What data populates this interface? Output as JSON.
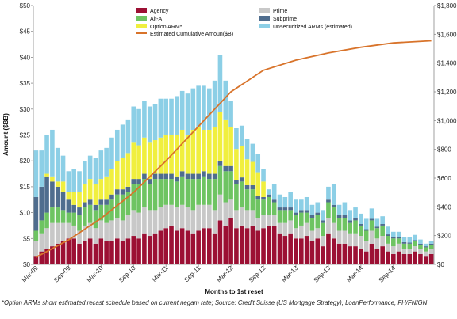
{
  "chart_data": {
    "type": "bar",
    "stacked": true,
    "xlabel": "Months to 1st reset",
    "ylabel": "Amount ($BB)",
    "ylim": [
      0,
      50
    ],
    "y2lim": [
      0,
      1800
    ],
    "y_ticks": [
      "$0",
      "$5",
      "$10",
      "$15",
      "$20",
      "$25",
      "$30",
      "$35",
      "$40",
      "$45",
      "$50"
    ],
    "y2_ticks": [
      "$0",
      "$200",
      "$400",
      "$600",
      "$800",
      "$1,000",
      "$1,200",
      "$1,400",
      "$1,600",
      "$1,800"
    ],
    "x_tick_labels": [
      "Mar-09",
      "Sep-09",
      "Mar-10",
      "Sep-10",
      "Mar-11",
      "Sep-11",
      "Mar-12",
      "Sep-12",
      "Mar-13",
      "Sep-13",
      "Mar-14",
      "Sep-14"
    ],
    "x_tick_index": [
      0,
      6,
      12,
      18,
      24,
      30,
      36,
      42,
      48,
      54,
      60,
      66
    ],
    "grid": false,
    "legend_position": "top",
    "series": [
      {
        "name": "Agency",
        "color": "#9c1034",
        "values": [
          1.5,
          2.5,
          3.0,
          3.5,
          4.0,
          4.5,
          5.0,
          5.0,
          4.0,
          4.5,
          5.0,
          4.0,
          5.0,
          4.5,
          4.5,
          5.0,
          4.5,
          5.0,
          5.5,
          5.0,
          6.0,
          5.5,
          6.0,
          6.5,
          7.0,
          7.5,
          6.5,
          7.0,
          6.5,
          6.0,
          6.5,
          7.0,
          7.0,
          6.0,
          8.5,
          7.5,
          9.0,
          7.0,
          7.5,
          7.0,
          7.5,
          6.5,
          7.0,
          7.5,
          7.5,
          6.0,
          5.5,
          6.0,
          5.0,
          5.0,
          5.5,
          4.5,
          5.0,
          3.5,
          6.0,
          5.0,
          4.0,
          4.0,
          3.5,
          3.5,
          3.0,
          2.5,
          4.0,
          3.0,
          3.5,
          2.5,
          2.0,
          2.5,
          2.0,
          2.0,
          2.5,
          2.0,
          1.5,
          2.0
        ]
      },
      {
        "name": "Prime",
        "color": "#c8c8c8",
        "values": [
          3.0,
          3.5,
          4.0,
          4.5,
          4.0,
          3.5,
          3.0,
          2.5,
          2.5,
          3.0,
          3.0,
          3.0,
          3.5,
          3.5,
          4.0,
          4.0,
          4.0,
          4.5,
          5.0,
          5.0,
          5.0,
          5.0,
          4.5,
          4.5,
          4.5,
          4.0,
          4.5,
          4.5,
          4.5,
          4.5,
          5.0,
          4.5,
          4.5,
          4.5,
          5.0,
          4.5,
          3.5,
          3.5,
          3.5,
          3.5,
          3.0,
          2.5,
          2.5,
          2.0,
          2.0,
          2.0,
          2.5,
          2.5,
          2.0,
          2.5,
          2.5,
          2.0,
          2.0,
          2.0,
          3.0,
          3.0,
          2.5,
          2.5,
          2.5,
          2.5,
          2.5,
          2.0,
          2.5,
          2.0,
          2.0,
          1.5,
          1.5,
          1.5,
          1.0,
          1.0,
          1.0,
          1.0,
          1.0,
          1.0
        ]
      },
      {
        "name": "Alt-A",
        "color": "#6ec462",
        "values": [
          2.0,
          2.5,
          3.0,
          3.0,
          3.0,
          2.5,
          2.0,
          2.5,
          3.0,
          3.5,
          3.5,
          3.5,
          3.0,
          3.5,
          4.0,
          4.5,
          5.0,
          4.5,
          5.0,
          5.5,
          5.5,
          5.0,
          6.0,
          5.5,
          5.0,
          5.0,
          5.0,
          5.5,
          5.5,
          6.0,
          5.0,
          5.5,
          5.0,
          6.0,
          5.5,
          6.0,
          5.5,
          5.0,
          5.0,
          4.0,
          4.0,
          3.5,
          3.0,
          3.5,
          2.5,
          2.5,
          2.5,
          2.0,
          2.5,
          2.5,
          2.0,
          2.5,
          2.5,
          2.5,
          3.0,
          3.0,
          2.5,
          2.5,
          2.0,
          2.5,
          2.0,
          2.0,
          2.0,
          2.0,
          2.0,
          1.5,
          1.5,
          1.0,
          1.0,
          1.0,
          1.0,
          0.8,
          0.8,
          0.8
        ]
      },
      {
        "name": "Subprime",
        "color": "#4f6d8e",
        "values": [
          6.5,
          6.5,
          7.0,
          5.0,
          4.0,
          3.5,
          2.5,
          1.5,
          1.5,
          1.0,
          1.0,
          1.0,
          1.0,
          1.0,
          1.0,
          1.0,
          1.0,
          1.0,
          1.0,
          1.0,
          1.0,
          1.0,
          1.0,
          1.0,
          1.0,
          1.0,
          1.0,
          1.0,
          1.0,
          1.0,
          1.0,
          1.0,
          1.0,
          1.0,
          1.0,
          1.0,
          1.0,
          0.8,
          0.8,
          0.8,
          0.8,
          0.8,
          0.5,
          0.5,
          0.5,
          0.5,
          0.5,
          0.5,
          0.5,
          0.5,
          0.5,
          0.5,
          0.5,
          0.5,
          0.5,
          0.5,
          0.5,
          0.5,
          0.5,
          0.5,
          0.3,
          0.3,
          0.3,
          0.3,
          0.3,
          0.3,
          0.3,
          0.3,
          0.3,
          0.2,
          0.2,
          0.2,
          0.2,
          0.2
        ]
      },
      {
        "name": "Option ARM*",
        "color": "#f0ef3e",
        "values": [
          0.0,
          0.0,
          0.5,
          1.0,
          1.0,
          2.0,
          1.5,
          2.5,
          3.0,
          3.5,
          4.0,
          4.0,
          4.0,
          4.5,
          5.0,
          5.5,
          6.0,
          6.5,
          7.0,
          6.5,
          7.0,
          7.0,
          6.5,
          7.0,
          7.5,
          7.5,
          8.0,
          8.0,
          7.5,
          8.5,
          9.0,
          8.0,
          8.5,
          9.0,
          9.5,
          9.0,
          7.5,
          6.0,
          6.0,
          5.0,
          4.5,
          4.5,
          3.0,
          0.0,
          0.0,
          0.0,
          0.0,
          0.0,
          0.0,
          0.0,
          0.0,
          0.0,
          0.0,
          0.0,
          0.0,
          0.0,
          0.0,
          0.0,
          0.0,
          0.0,
          0.0,
          0.0,
          0.0,
          0.0,
          0.0,
          0.0,
          0.0,
          0.0,
          0.0,
          0.0,
          0.0,
          0.0,
          0.0,
          0.0
        ]
      },
      {
        "name": "Unsecuritized ARMs (estimated)",
        "color": "#8ccfe6",
        "values": [
          9.0,
          7.0,
          7.5,
          9.0,
          6.5,
          5.0,
          4.0,
          4.5,
          4.0,
          4.5,
          4.5,
          5.0,
          5.5,
          5.5,
          6.0,
          6.0,
          6.5,
          6.5,
          7.0,
          7.0,
          7.0,
          7.0,
          7.0,
          7.5,
          7.0,
          7.0,
          7.5,
          7.5,
          8.0,
          8.0,
          8.0,
          8.5,
          8.0,
          9.0,
          11.0,
          7.5,
          5.0,
          4.0,
          4.0,
          4.0,
          3.5,
          3.5,
          2.5,
          1.0,
          3.0,
          2.5,
          2.0,
          3.0,
          2.5,
          2.0,
          2.5,
          2.0,
          2.0,
          2.0,
          2.5,
          4.0,
          2.0,
          2.5,
          2.0,
          2.0,
          2.0,
          2.0,
          2.0,
          1.5,
          1.5,
          1.5,
          1.0,
          1.0,
          1.0,
          1.0,
          1.0,
          0.8,
          0.5,
          0.5
        ]
      },
      {
        "name": "Estimated Cumulative Amoun($B)",
        "color": "#d8732a",
        "type": "line",
        "axis": "right",
        "x_index": [
          0,
          6,
          12,
          18,
          24,
          30,
          36,
          42,
          48,
          54,
          60,
          66,
          73
        ],
        "values": [
          50,
          170,
          320,
          500,
          720,
          960,
          1200,
          1350,
          1420,
          1470,
          1510,
          1540,
          1555
        ]
      }
    ]
  },
  "footnote": "*Option ARMs show  estimated recast schedule based on  current negam rate; Source: Credit Suisse (US Mortgage Strategy), LoanPerformance, FH/FN/GN"
}
